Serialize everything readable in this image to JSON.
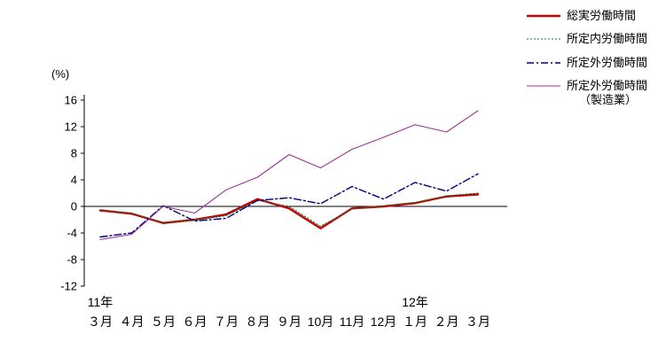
{
  "chart_data": {
    "type": "line",
    "title": "",
    "ylabel": "(%)",
    "xlabel": "",
    "ylim": [
      -12,
      16
    ],
    "yticks": [
      16,
      12,
      8,
      4,
      0,
      -4,
      -8,
      -12
    ],
    "grid": false,
    "legend_position": "top-right",
    "categories": [
      "３月",
      "４月",
      "５月",
      "６月",
      "７月",
      "８月",
      "９月",
      "10月",
      "11月",
      "12月",
      "１月",
      "２月",
      "３月"
    ],
    "x_year_labels": [
      {
        "label": "11年",
        "index": 0
      },
      {
        "label": "12年",
        "index": 10
      }
    ],
    "series": [
      {
        "name": "総実労働時間",
        "color": "#cc0000",
        "style": "solid-thick",
        "values": [
          -0.6,
          -1.1,
          -2.5,
          -2.0,
          -1.2,
          1.1,
          -0.3,
          -3.3,
          -0.3,
          0.0,
          0.5,
          1.5,
          1.8
        ]
      },
      {
        "name": "所定内労働時間",
        "color": "#008040",
        "style": "dotted",
        "values": [
          -0.5,
          -1.0,
          -2.4,
          -2.1,
          -1.4,
          0.9,
          0.0,
          -3.0,
          -0.4,
          0.1,
          0.6,
          1.6,
          2.0
        ]
      },
      {
        "name": "所定外労働時間",
        "color": "#000080",
        "style": "dashdot",
        "values": [
          -4.6,
          -4.0,
          0.1,
          -2.2,
          -1.8,
          0.9,
          1.3,
          0.4,
          3.0,
          1.1,
          3.6,
          2.3,
          4.9
        ]
      },
      {
        "name": "所定外労働時間",
        "name2": "（製造業）",
        "color": "#993399",
        "style": "solid-thin",
        "values": [
          -5.0,
          -4.2,
          0.0,
          -1.0,
          2.5,
          4.4,
          7.8,
          5.8,
          8.6,
          10.4,
          12.3,
          11.2,
          14.4
        ]
      }
    ]
  }
}
